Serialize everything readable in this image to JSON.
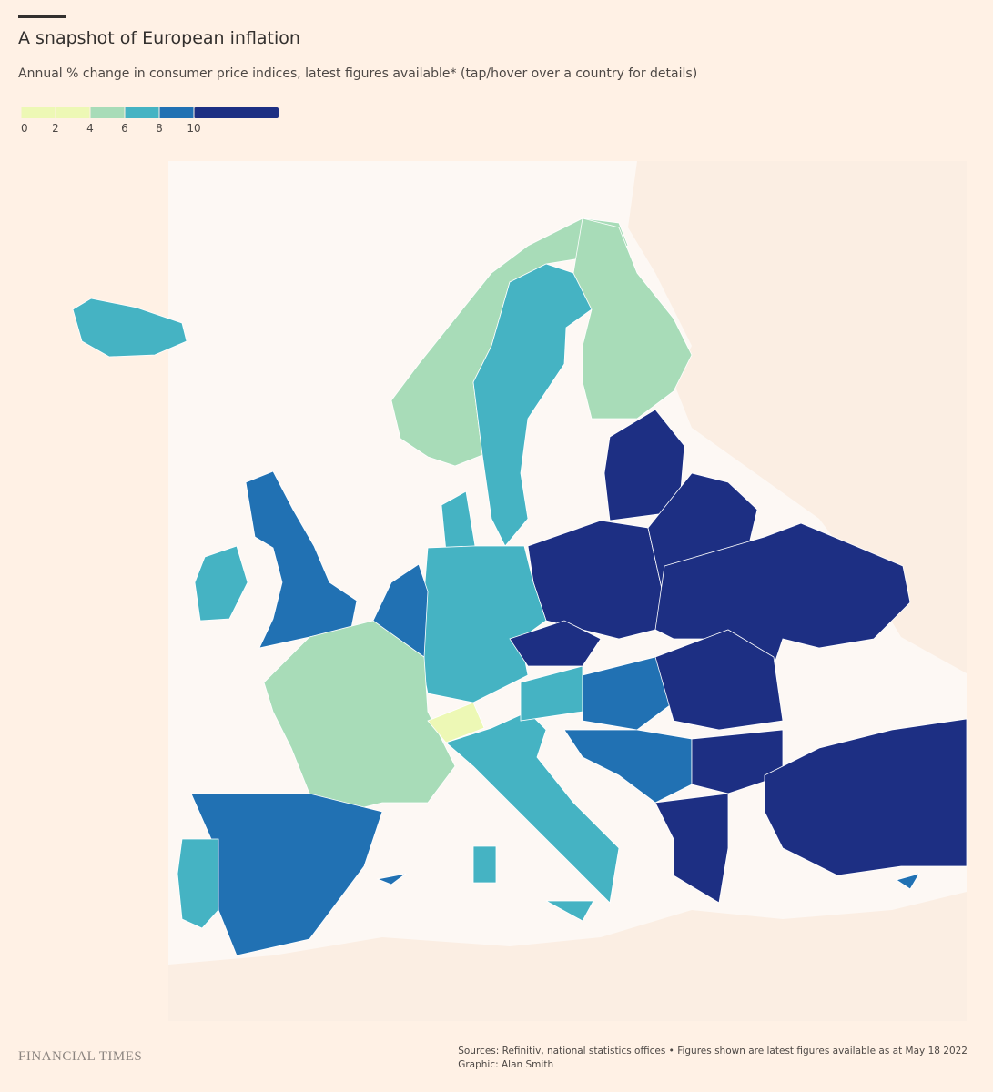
{
  "header": {
    "title": "A snapshot of European inflation",
    "subtitle": "Annual % change in consumer price indices, latest figures available* (tap/hover over a country for details)"
  },
  "legend": {
    "ticks": [
      0,
      2,
      4,
      6,
      8,
      10
    ],
    "colors": [
      "#edf8b5",
      "#edf8b5",
      "#a8dcb8",
      "#45b3c3",
      "#2171b3",
      "#1d2f83"
    ]
  },
  "footer": {
    "brand": "FINANCIAL TIMES",
    "sources": "Sources: Refinitiv, national statistics offices • Figures shown are latest figures available as at May 18 2022",
    "credit": "Graphic: Alan Smith"
  }
}
